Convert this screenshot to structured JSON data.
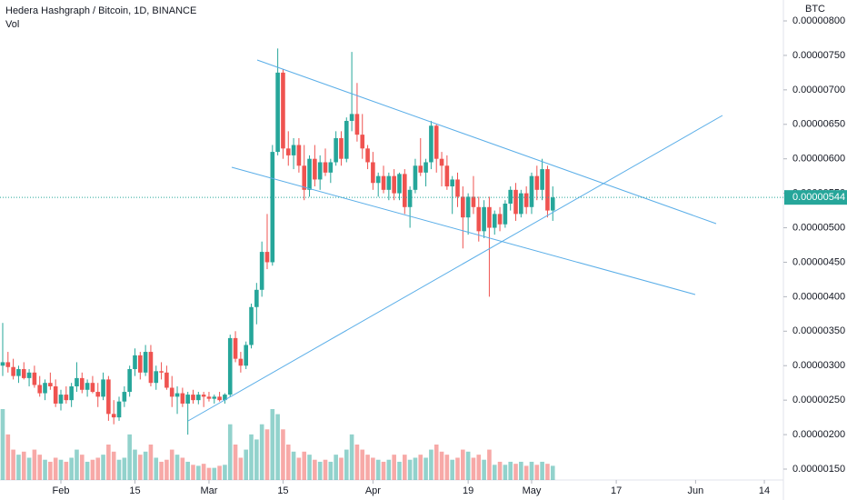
{
  "chart_data": {
    "type": "candlestick",
    "title": "Hedera Hashgraph / Bitcoin, 1D, BINANCE",
    "volume_label": "Vol",
    "currency": "BTC",
    "last_label": "0.00000544",
    "up_color": "#26a69a",
    "down_color": "#ef5350",
    "line_color": "#5aaee8",
    "ylim": [
      1.3e-06,
      8.3e-06
    ],
    "yticks": [
      {
        "value": 8e-06,
        "label": "0.00000800"
      },
      {
        "value": 7.5e-06,
        "label": "0.00000750"
      },
      {
        "value": 7e-06,
        "label": "0.00000700"
      },
      {
        "value": 6.5e-06,
        "label": "0.00000650"
      },
      {
        "value": 6e-06,
        "label": "0.00000600"
      },
      {
        "value": 5.5e-06,
        "label": "0.00000550"
      },
      {
        "value": 5e-06,
        "label": "0.00000500"
      },
      {
        "value": 4.5e-06,
        "label": "0.00000450"
      },
      {
        "value": 4e-06,
        "label": "0.00000400"
      },
      {
        "value": 3.5e-06,
        "label": "0.00000350"
      },
      {
        "value": 3e-06,
        "label": "0.00000300"
      },
      {
        "value": 2.5e-06,
        "label": "0.00000250"
      },
      {
        "value": 2e-06,
        "label": "0.00000200"
      },
      {
        "value": 1.5e-06,
        "label": "0.00000150"
      }
    ],
    "xticks": [
      {
        "value": "Feb 1",
        "label": "Feb"
      },
      {
        "value": "Feb 15",
        "label": "15"
      },
      {
        "value": "Mar 1",
        "label": "Mar"
      },
      {
        "value": "Mar 15",
        "label": "15"
      },
      {
        "value": "Apr 1",
        "label": "Apr"
      },
      {
        "value": "Apr 19",
        "label": "19"
      },
      {
        "value": "May 1",
        "label": "May"
      },
      {
        "value": "May 17",
        "label": "17"
      },
      {
        "value": "Jun 1",
        "label": "Jun"
      },
      {
        "value": "Jun 14",
        "label": "14"
      }
    ],
    "candles": [
      {
        "date": "Jan 21",
        "open": 3e-06,
        "high": 3.62e-06,
        "low": 2.85e-06,
        "close": 3.05e-06,
        "volume": 70
      },
      {
        "date": "Jan 22",
        "open": 3.05e-06,
        "high": 3.2e-06,
        "low": 2.9e-06,
        "close": 2.98e-06,
        "volume": 45
      },
      {
        "date": "Jan 23",
        "open": 2.98e-06,
        "high": 3.1e-06,
        "low": 2.8e-06,
        "close": 2.85e-06,
        "volume": 30
      },
      {
        "date": "Jan 24",
        "open": 2.85e-06,
        "high": 3e-06,
        "low": 2.75e-06,
        "close": 2.95e-06,
        "volume": 25
      },
      {
        "date": "Jan 25",
        "open": 2.95e-06,
        "high": 3.05e-06,
        "low": 2.8e-06,
        "close": 2.82e-06,
        "volume": 28
      },
      {
        "date": "Jan 26",
        "open": 2.82e-06,
        "high": 2.95e-06,
        "low": 2.7e-06,
        "close": 2.9e-06,
        "volume": 22
      },
      {
        "date": "Jan 27",
        "open": 2.9e-06,
        "high": 3e-06,
        "low": 2.68e-06,
        "close": 2.72e-06,
        "volume": 30
      },
      {
        "date": "Jan 28",
        "open": 2.72e-06,
        "high": 2.85e-06,
        "low": 2.55e-06,
        "close": 2.6e-06,
        "volume": 25
      },
      {
        "date": "Jan 29",
        "open": 2.6e-06,
        "high": 2.8e-06,
        "low": 2.5e-06,
        "close": 2.75e-06,
        "volume": 20
      },
      {
        "date": "Jan 30",
        "open": 2.75e-06,
        "high": 2.9e-06,
        "low": 2.65e-06,
        "close": 2.7e-06,
        "volume": 18
      },
      {
        "date": "Jan 31",
        "open": 2.7e-06,
        "high": 2.8e-06,
        "low": 2.4e-06,
        "close": 2.45e-06,
        "volume": 22
      },
      {
        "date": "Feb 1",
        "open": 2.45e-06,
        "high": 2.65e-06,
        "low": 2.35e-06,
        "close": 2.58e-06,
        "volume": 20
      },
      {
        "date": "Feb 2",
        "open": 2.58e-06,
        "high": 2.7e-06,
        "low": 2.45e-06,
        "close": 2.5e-06,
        "volume": 18
      },
      {
        "date": "Feb 3",
        "open": 2.5e-06,
        "high": 2.75e-06,
        "low": 2.4e-06,
        "close": 2.7e-06,
        "volume": 22
      },
      {
        "date": "Feb 4",
        "open": 2.7e-06,
        "high": 3.05e-06,
        "low": 2.62e-06,
        "close": 2.82e-06,
        "volume": 30
      },
      {
        "date": "Feb 5",
        "open": 2.82e-06,
        "high": 2.9e-06,
        "low": 2.6e-06,
        "close": 2.65e-06,
        "volume": 25
      },
      {
        "date": "Feb 6",
        "open": 2.65e-06,
        "high": 2.8e-06,
        "low": 2.55e-06,
        "close": 2.75e-06,
        "volume": 18
      },
      {
        "date": "Feb 7",
        "open": 2.75e-06,
        "high": 2.85e-06,
        "low": 2.6e-06,
        "close": 2.62e-06,
        "volume": 20
      },
      {
        "date": "Feb 8",
        "open": 2.62e-06,
        "high": 2.75e-06,
        "low": 2.4e-06,
        "close": 2.55e-06,
        "volume": 22
      },
      {
        "date": "Feb 9",
        "open": 2.55e-06,
        "high": 2.9e-06,
        "low": 2.5e-06,
        "close": 2.8e-06,
        "volume": 25
      },
      {
        "date": "Feb 10",
        "open": 2.8e-06,
        "high": 2.85e-06,
        "low": 2.2e-06,
        "close": 2.3e-06,
        "volume": 35
      },
      {
        "date": "Feb 11",
        "open": 2.3e-06,
        "high": 2.5e-06,
        "low": 2.15e-06,
        "close": 2.25e-06,
        "volume": 28
      },
      {
        "date": "Feb 12",
        "open": 2.25e-06,
        "high": 2.55e-06,
        "low": 2.2e-06,
        "close": 2.48e-06,
        "volume": 20
      },
      {
        "date": "Feb 13",
        "open": 2.48e-06,
        "high": 2.7e-06,
        "low": 2.4e-06,
        "close": 2.62e-06,
        "volume": 22
      },
      {
        "date": "Feb 14",
        "open": 2.62e-06,
        "high": 3e-06,
        "low": 2.55e-06,
        "close": 2.95e-06,
        "volume": 45
      },
      {
        "date": "Feb 15",
        "open": 2.95e-06,
        "high": 3.25e-06,
        "low": 2.85e-06,
        "close": 3.15e-06,
        "volume": 30
      },
      {
        "date": "Feb 16",
        "open": 3.15e-06,
        "high": 3.2e-06,
        "low": 2.8e-06,
        "close": 2.9e-06,
        "volume": 25
      },
      {
        "date": "Feb 17",
        "open": 2.9e-06,
        "high": 3.3e-06,
        "low": 2.85e-06,
        "close": 3.2e-06,
        "volume": 28
      },
      {
        "date": "Feb 18",
        "open": 3.2e-06,
        "high": 3.3e-06,
        "low": 2.7e-06,
        "close": 2.75e-06,
        "volume": 35
      },
      {
        "date": "Feb 19",
        "open": 2.75e-06,
        "high": 3e-06,
        "low": 2.65e-06,
        "close": 2.92e-06,
        "volume": 22
      },
      {
        "date": "Feb 20",
        "open": 2.92e-06,
        "high": 3.05e-06,
        "low": 2.8e-06,
        "close": 2.9e-06,
        "volume": 18
      },
      {
        "date": "Feb 21",
        "open": 2.9e-06,
        "high": 3e-06,
        "low": 2.65e-06,
        "close": 2.68e-06,
        "volume": 20
      },
      {
        "date": "Feb 22",
        "open": 2.68e-06,
        "high": 2.85e-06,
        "low": 2.4e-06,
        "close": 2.55e-06,
        "volume": 30
      },
      {
        "date": "Feb 23",
        "open": 2.55e-06,
        "high": 2.7e-06,
        "low": 2.3e-06,
        "close": 2.6e-06,
        "volume": 25
      },
      {
        "date": "Feb 24",
        "open": 2.6e-06,
        "high": 2.68e-06,
        "low": 2.4e-06,
        "close": 2.45e-06,
        "volume": 22
      },
      {
        "date": "Feb 25",
        "open": 2.45e-06,
        "high": 2.62e-06,
        "low": 2e-06,
        "close": 2.58e-06,
        "volume": 18
      },
      {
        "date": "Feb 26",
        "open": 2.58e-06,
        "high": 2.65e-06,
        "low": 2.45e-06,
        "close": 2.5e-06,
        "volume": 15
      },
      {
        "date": "Feb 27",
        "open": 2.5e-06,
        "high": 2.62e-06,
        "low": 2.44e-06,
        "close": 2.58e-06,
        "volume": 14
      },
      {
        "date": "Feb 28",
        "open": 2.58e-06,
        "high": 2.62e-06,
        "low": 2.4e-06,
        "close": 2.55e-06,
        "volume": 16
      },
      {
        "date": "Mar 1",
        "open": 2.55e-06,
        "high": 2.62e-06,
        "low": 2.48e-06,
        "close": 2.52e-06,
        "volume": 12
      },
      {
        "date": "Mar 2",
        "open": 2.52e-06,
        "high": 2.58e-06,
        "low": 2.45e-06,
        "close": 2.55e-06,
        "volume": 12
      },
      {
        "date": "Mar 3",
        "open": 2.55e-06,
        "high": 2.62e-06,
        "low": 2.48e-06,
        "close": 2.5e-06,
        "volume": 14
      },
      {
        "date": "Mar 4",
        "open": 2.5e-06,
        "high": 2.6e-06,
        "low": 2.45e-06,
        "close": 2.58e-06,
        "volume": 15
      },
      {
        "date": "Mar 5",
        "open": 2.58e-06,
        "high": 3.45e-06,
        "low": 2.55e-06,
        "close": 3.4e-06,
        "volume": 55
      },
      {
        "date": "Mar 6",
        "open": 3.4e-06,
        "high": 3.5e-06,
        "low": 3.05e-06,
        "close": 3.1e-06,
        "volume": 35
      },
      {
        "date": "Mar 7",
        "open": 3.1e-06,
        "high": 3.2e-06,
        "low": 2.9e-06,
        "close": 3e-06,
        "volume": 22
      },
      {
        "date": "Mar 8",
        "open": 3e-06,
        "high": 3.35e-06,
        "low": 2.95e-06,
        "close": 3.3e-06,
        "volume": 30
      },
      {
        "date": "Mar 9",
        "open": 3.3e-06,
        "high": 3.9e-06,
        "low": 3.25e-06,
        "close": 3.85e-06,
        "volume": 45
      },
      {
        "date": "Mar 10",
        "open": 3.85e-06,
        "high": 4.2e-06,
        "low": 3.6e-06,
        "close": 4.1e-06,
        "volume": 40
      },
      {
        "date": "Mar 11",
        "open": 4.1e-06,
        "high": 4.8e-06,
        "low": 4e-06,
        "close": 4.65e-06,
        "volume": 55
      },
      {
        "date": "Mar 12",
        "open": 4.65e-06,
        "high": 5.2e-06,
        "low": 4.4e-06,
        "close": 4.5e-06,
        "volume": 50
      },
      {
        "date": "Mar 13",
        "open": 4.5e-06,
        "high": 6.2e-06,
        "low": 4.45e-06,
        "close": 6.1e-06,
        "volume": 70
      },
      {
        "date": "Mar 14",
        "open": 6.1e-06,
        "high": 7.6e-06,
        "low": 6.05e-06,
        "close": 7.25e-06,
        "volume": 65
      },
      {
        "date": "Mar 15",
        "open": 7.25e-06,
        "high": 7.3e-06,
        "low": 6e-06,
        "close": 6.15e-06,
        "volume": 50
      },
      {
        "date": "Mar 16",
        "open": 6.15e-06,
        "high": 6.4e-06,
        "low": 5.9e-06,
        "close": 6.05e-06,
        "volume": 35
      },
      {
        "date": "Mar 17",
        "open": 6.05e-06,
        "high": 6.3e-06,
        "low": 5.85e-06,
        "close": 6.2e-06,
        "volume": 28
      },
      {
        "date": "Mar 18",
        "open": 6.2e-06,
        "high": 6.3e-06,
        "low": 5.8e-06,
        "close": 5.9e-06,
        "volume": 22
      },
      {
        "date": "Mar 19",
        "open": 5.9e-06,
        "high": 6.2e-06,
        "low": 5.4e-06,
        "close": 5.55e-06,
        "volume": 28
      },
      {
        "date": "Mar 20",
        "open": 5.55e-06,
        "high": 6.05e-06,
        "low": 5.45e-06,
        "close": 6e-06,
        "volume": 25
      },
      {
        "date": "Mar 21",
        "open": 6e-06,
        "high": 6.2e-06,
        "low": 5.6e-06,
        "close": 5.7e-06,
        "volume": 20
      },
      {
        "date": "Mar 22",
        "open": 5.7e-06,
        "high": 6.05e-06,
        "low": 5.55e-06,
        "close": 5.95e-06,
        "volume": 18
      },
      {
        "date": "Mar 23",
        "open": 5.95e-06,
        "high": 6.15e-06,
        "low": 5.75e-06,
        "close": 5.8e-06,
        "volume": 20
      },
      {
        "date": "Mar 24",
        "open": 5.8e-06,
        "high": 6e-06,
        "low": 5.65e-06,
        "close": 5.95e-06,
        "volume": 18
      },
      {
        "date": "Mar 25",
        "open": 5.95e-06,
        "high": 6.4e-06,
        "low": 5.9e-06,
        "close": 6.3e-06,
        "volume": 25
      },
      {
        "date": "Mar 26",
        "open": 6.3e-06,
        "high": 6.4e-06,
        "low": 5.9e-06,
        "close": 6e-06,
        "volume": 22
      },
      {
        "date": "Mar 27",
        "open": 6e-06,
        "high": 6.6e-06,
        "low": 5.95e-06,
        "close": 6.55e-06,
        "volume": 30
      },
      {
        "date": "Mar 28",
        "open": 6.55e-06,
        "high": 7.55e-06,
        "low": 6.4e-06,
        "close": 6.65e-06,
        "volume": 45
      },
      {
        "date": "Mar 29",
        "open": 6.65e-06,
        "high": 7.1e-06,
        "low": 6.25e-06,
        "close": 6.35e-06,
        "volume": 35
      },
      {
        "date": "Mar 30",
        "open": 6.35e-06,
        "high": 6.65e-06,
        "low": 6e-06,
        "close": 6.15e-06,
        "volume": 30
      },
      {
        "date": "Mar 31",
        "open": 6.15e-06,
        "high": 6.2e-06,
        "low": 5.85e-06,
        "close": 5.95e-06,
        "volume": 25
      },
      {
        "date": "Apr 1",
        "open": 5.95e-06,
        "high": 6.1e-06,
        "low": 5.55e-06,
        "close": 5.65e-06,
        "volume": 22
      },
      {
        "date": "Apr 2",
        "open": 5.65e-06,
        "high": 5.8e-06,
        "low": 5.45e-06,
        "close": 5.75e-06,
        "volume": 20
      },
      {
        "date": "Apr 3",
        "open": 5.75e-06,
        "high": 5.9e-06,
        "low": 5.5e-06,
        "close": 5.55e-06,
        "volume": 18
      },
      {
        "date": "Apr 4",
        "open": 5.55e-06,
        "high": 5.8e-06,
        "low": 5.4e-06,
        "close": 5.75e-06,
        "volume": 20
      },
      {
        "date": "Apr 5",
        "open": 5.75e-06,
        "high": 5.85e-06,
        "low": 5.4e-06,
        "close": 5.5e-06,
        "volume": 25
      },
      {
        "date": "Apr 6",
        "open": 5.5e-06,
        "high": 5.8e-06,
        "low": 5.4e-06,
        "close": 5.78e-06,
        "volume": 18
      },
      {
        "date": "Apr 7",
        "open": 5.78e-06,
        "high": 5.85e-06,
        "low": 5.2e-06,
        "close": 5.3e-06,
        "volume": 25
      },
      {
        "date": "Apr 8",
        "open": 5.3e-06,
        "high": 5.6e-06,
        "low": 5e-06,
        "close": 5.55e-06,
        "volume": 20
      },
      {
        "date": "Apr 9",
        "open": 5.55e-06,
        "high": 6e-06,
        "low": 5.5e-06,
        "close": 5.9e-06,
        "volume": 22
      },
      {
        "date": "Apr 10",
        "open": 5.9e-06,
        "high": 6.3e-06,
        "low": 5.75e-06,
        "close": 5.8e-06,
        "volume": 25
      },
      {
        "date": "Apr 11",
        "open": 5.8e-06,
        "high": 6e-06,
        "low": 5.6e-06,
        "close": 5.95e-06,
        "volume": 22
      },
      {
        "date": "Apr 12",
        "open": 5.95e-06,
        "high": 6.55e-06,
        "low": 5.85e-06,
        "close": 6.48e-06,
        "volume": 30
      },
      {
        "date": "Apr 13",
        "open": 6.48e-06,
        "high": 6.5e-06,
        "low": 5.8e-06,
        "close": 6e-06,
        "volume": 35
      },
      {
        "date": "Apr 14",
        "open": 6e-06,
        "high": 6.1e-06,
        "low": 5.6e-06,
        "close": 5.9e-06,
        "volume": 28
      },
      {
        "date": "Apr 15",
        "open": 5.9e-06,
        "high": 6.05e-06,
        "low": 5.55e-06,
        "close": 5.6e-06,
        "volume": 25
      },
      {
        "date": "Apr 16",
        "open": 5.6e-06,
        "high": 5.75e-06,
        "low": 5.2e-06,
        "close": 5.7e-06,
        "volume": 20
      },
      {
        "date": "Apr 17",
        "open": 5.7e-06,
        "high": 5.8e-06,
        "low": 5.3e-06,
        "close": 5.45e-06,
        "volume": 22
      },
      {
        "date": "Apr 18",
        "open": 5.45e-06,
        "high": 5.6e-06,
        "low": 4.7e-06,
        "close": 5.15e-06,
        "volume": 30
      },
      {
        "date": "Apr 19",
        "open": 5.15e-06,
        "high": 5.5e-06,
        "low": 4.9e-06,
        "close": 5.45e-06,
        "volume": 28
      },
      {
        "date": "Apr 20",
        "open": 5.45e-06,
        "high": 5.75e-06,
        "low": 5.2e-06,
        "close": 5.3e-06,
        "volume": 22
      },
      {
        "date": "Apr 21",
        "open": 5.3e-06,
        "high": 5.45e-06,
        "low": 4.8e-06,
        "close": 4.95e-06,
        "volume": 25
      },
      {
        "date": "Apr 22",
        "open": 4.95e-06,
        "high": 5.4e-06,
        "low": 4.85e-06,
        "close": 5.3e-06,
        "volume": 20
      },
      {
        "date": "Apr 23",
        "open": 5.3e-06,
        "high": 5.45e-06,
        "low": 4e-06,
        "close": 5e-06,
        "volume": 30
      },
      {
        "date": "Apr 24",
        "open": 5e-06,
        "high": 5.25e-06,
        "low": 4.9e-06,
        "close": 5.2e-06,
        "volume": 15
      },
      {
        "date": "Apr 25",
        "open": 5.2e-06,
        "high": 5.3e-06,
        "low": 4.95e-06,
        "close": 5.05e-06,
        "volume": 18
      },
      {
        "date": "Apr 26",
        "open": 5.05e-06,
        "high": 5.4e-06,
        "low": 5e-06,
        "close": 5.35e-06,
        "volume": 15
      },
      {
        "date": "Apr 27",
        "open": 5.35e-06,
        "high": 5.6e-06,
        "low": 5.25e-06,
        "close": 5.55e-06,
        "volume": 18
      },
      {
        "date": "Apr 28",
        "open": 5.55e-06,
        "high": 5.65e-06,
        "low": 5.1e-06,
        "close": 5.2e-06,
        "volume": 16
      },
      {
        "date": "Apr 29",
        "open": 5.2e-06,
        "high": 5.55e-06,
        "low": 5.15e-06,
        "close": 5.5e-06,
        "volume": 18
      },
      {
        "date": "Apr 30",
        "open": 5.5e-06,
        "high": 5.6e-06,
        "low": 5.2e-06,
        "close": 5.3e-06,
        "volume": 14
      },
      {
        "date": "May 1",
        "open": 5.3e-06,
        "high": 5.8e-06,
        "low": 5.2e-06,
        "close": 5.75e-06,
        "volume": 18
      },
      {
        "date": "May 2",
        "open": 5.75e-06,
        "high": 5.9e-06,
        "low": 5.4e-06,
        "close": 5.55e-06,
        "volume": 15
      },
      {
        "date": "May 3",
        "open": 5.55e-06,
        "high": 6e-06,
        "low": 5.4e-06,
        "close": 5.85e-06,
        "volume": 18
      },
      {
        "date": "May 4",
        "open": 5.85e-06,
        "high": 5.9e-06,
        "low": 5.15e-06,
        "close": 5.25e-06,
        "volume": 16
      },
      {
        "date": "May 5",
        "open": 5.25e-06,
        "high": 5.6e-06,
        "low": 5.1e-06,
        "close": 5.44e-06,
        "volume": 14
      }
    ]
  }
}
